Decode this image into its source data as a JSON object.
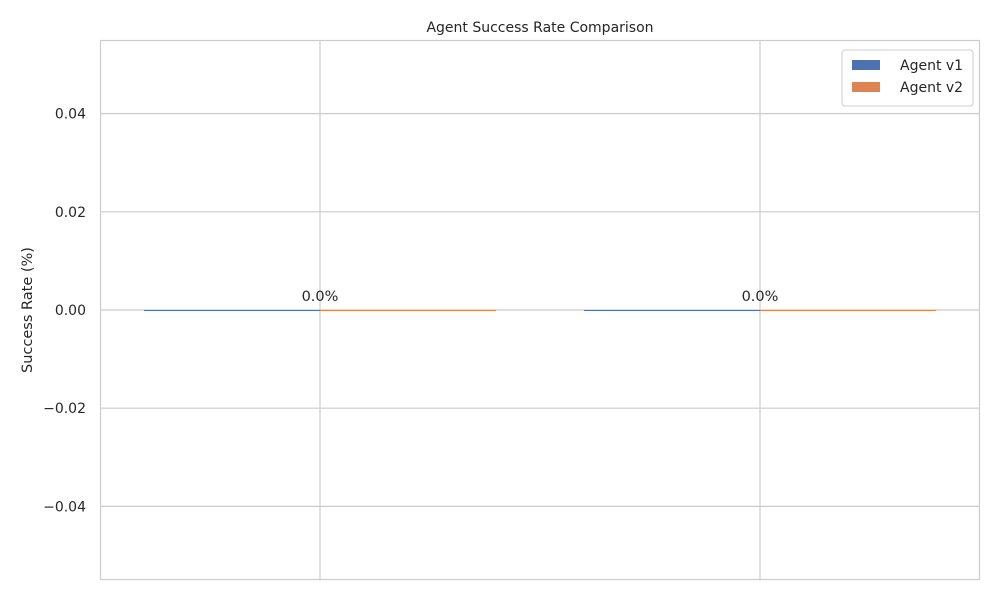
{
  "chart_data": {
    "type": "bar",
    "title": "Agent Success Rate Comparison",
    "xlabel": "",
    "ylabel": "Success Rate (%)",
    "ylim": [
      -0.055,
      0.055
    ],
    "yticks": [
      -0.04,
      -0.02,
      0.0,
      0.02,
      0.04
    ],
    "ytick_labels": [
      "−0.04",
      "−0.02",
      "0.00",
      "0.02",
      "0.04"
    ],
    "categories": [
      "",
      ""
    ],
    "series": [
      {
        "name": "Agent v1",
        "values": [
          0,
          0
        ],
        "data_labels": [
          "0.0%",
          ""
        ]
      },
      {
        "name": "Agent v2",
        "values": [
          0,
          0
        ],
        "data_labels": [
          "",
          "0.0%"
        ]
      }
    ],
    "grid": true,
    "legend_position": "top-right",
    "colors": {
      "Agent v1": "#4c72b0",
      "Agent v2": "#dd8452",
      "grid": "#cccccc",
      "spine": "#cccccc",
      "text": "#262626"
    }
  }
}
